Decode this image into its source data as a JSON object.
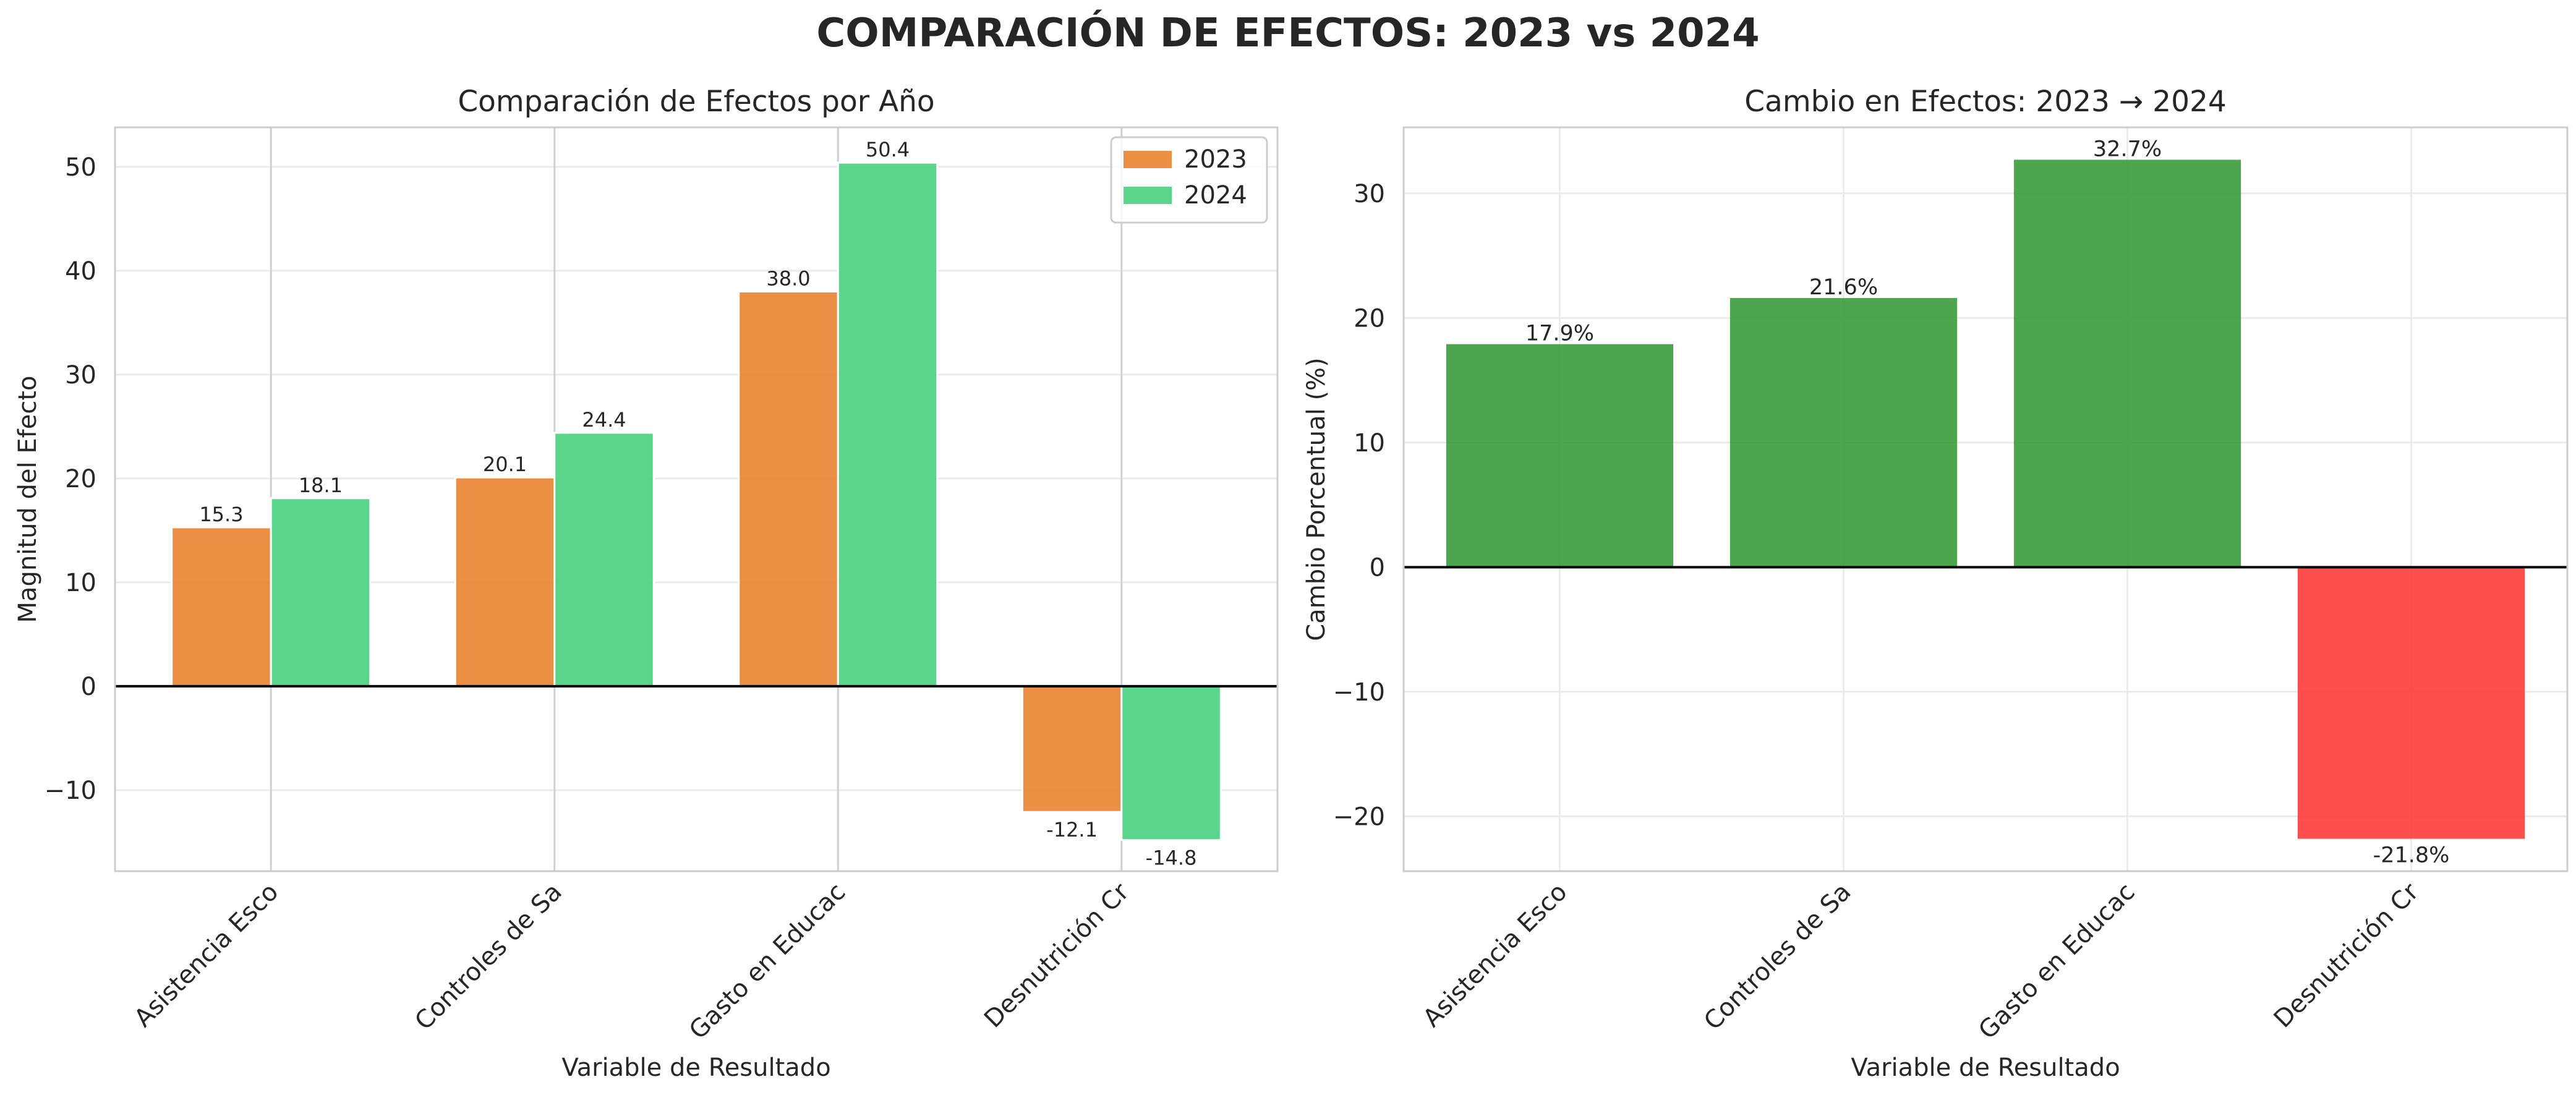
{
  "figure_title": "COMPARACIÓN DE EFECTOS: 2023 vs 2024",
  "chart_data": [
    {
      "type": "bar",
      "title": "Comparación de Efectos por Año",
      "xlabel": "Variable de Resultado",
      "ylabel": "Magnitud del Efecto",
      "categories": [
        "Asistencia Esco",
        "Controles de Sa",
        "Gasto en Educac",
        "Desnutrición Cr"
      ],
      "series": [
        {
          "name": "2023",
          "values": [
            15.3,
            20.1,
            38.0,
            -12.1
          ],
          "labels": [
            "15.3",
            "20.1",
            "38.0",
            "-12.1"
          ],
          "color": "#E8832F"
        },
        {
          "name": "2024",
          "values": [
            18.1,
            24.4,
            50.4,
            -14.8
          ],
          "labels": [
            "18.1",
            "24.4",
            "50.4",
            "-14.8"
          ],
          "color": "#48D07E"
        }
      ],
      "ylim": [
        -17.8,
        53.8
      ],
      "yticks": [
        -10,
        0,
        10,
        20,
        30,
        40,
        50
      ],
      "ytick_labels": [
        "−10",
        "0",
        "10",
        "20",
        "30",
        "40",
        "50"
      ],
      "legend": "top-right",
      "grid": true,
      "zero_line": true
    },
    {
      "type": "bar",
      "title": "Cambio en Efectos: 2023 → 2024",
      "xlabel": "Variable de Resultado",
      "ylabel": "Cambio Porcentual (%)",
      "categories": [
        "Asistencia Esco",
        "Controles de Sa",
        "Gasto en Educac",
        "Desnutrición Cr"
      ],
      "values": [
        17.9,
        21.6,
        32.7,
        -21.8
      ],
      "labels": [
        "17.9%",
        "21.6%",
        "32.7%",
        "-21.8%"
      ],
      "colors": [
        "#3A9C3A",
        "#3A9C3A",
        "#3A9C3A",
        "#FF3B3B"
      ],
      "ylim": [
        -24.4,
        35.3
      ],
      "yticks": [
        -20,
        -10,
        0,
        10,
        20,
        30
      ],
      "ytick_labels": [
        "−20",
        "−10",
        "0",
        "10",
        "20",
        "30"
      ],
      "grid": true,
      "zero_line": true
    }
  ]
}
